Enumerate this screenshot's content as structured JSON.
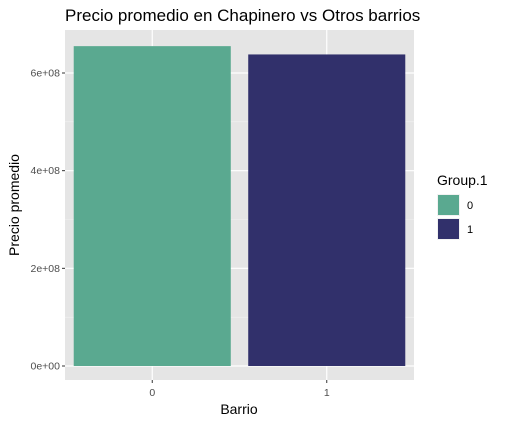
{
  "chart_data": {
    "type": "bar",
    "title": "Precio promedio en Chapinero vs Otros barrios",
    "xlabel": "Barrio",
    "ylabel": "Precio promedio",
    "categories": [
      "0",
      "1"
    ],
    "values": [
      655000000,
      638000000
    ],
    "ylim": [
      0,
      680000000
    ],
    "yticks": [
      0,
      200000000,
      400000000,
      600000000
    ],
    "ytick_labels": [
      "0e+00",
      "2e+08",
      "4e+08",
      "6e+08"
    ],
    "grid": true,
    "legend": {
      "title": "Group.1",
      "placement": "right",
      "entries": [
        {
          "label": "0",
          "color": "#5aa990"
        },
        {
          "label": "1",
          "color": "#31306b"
        }
      ]
    },
    "colors": [
      "#5aa990",
      "#31306b"
    ],
    "panel_background": "#e5e5e5"
  }
}
